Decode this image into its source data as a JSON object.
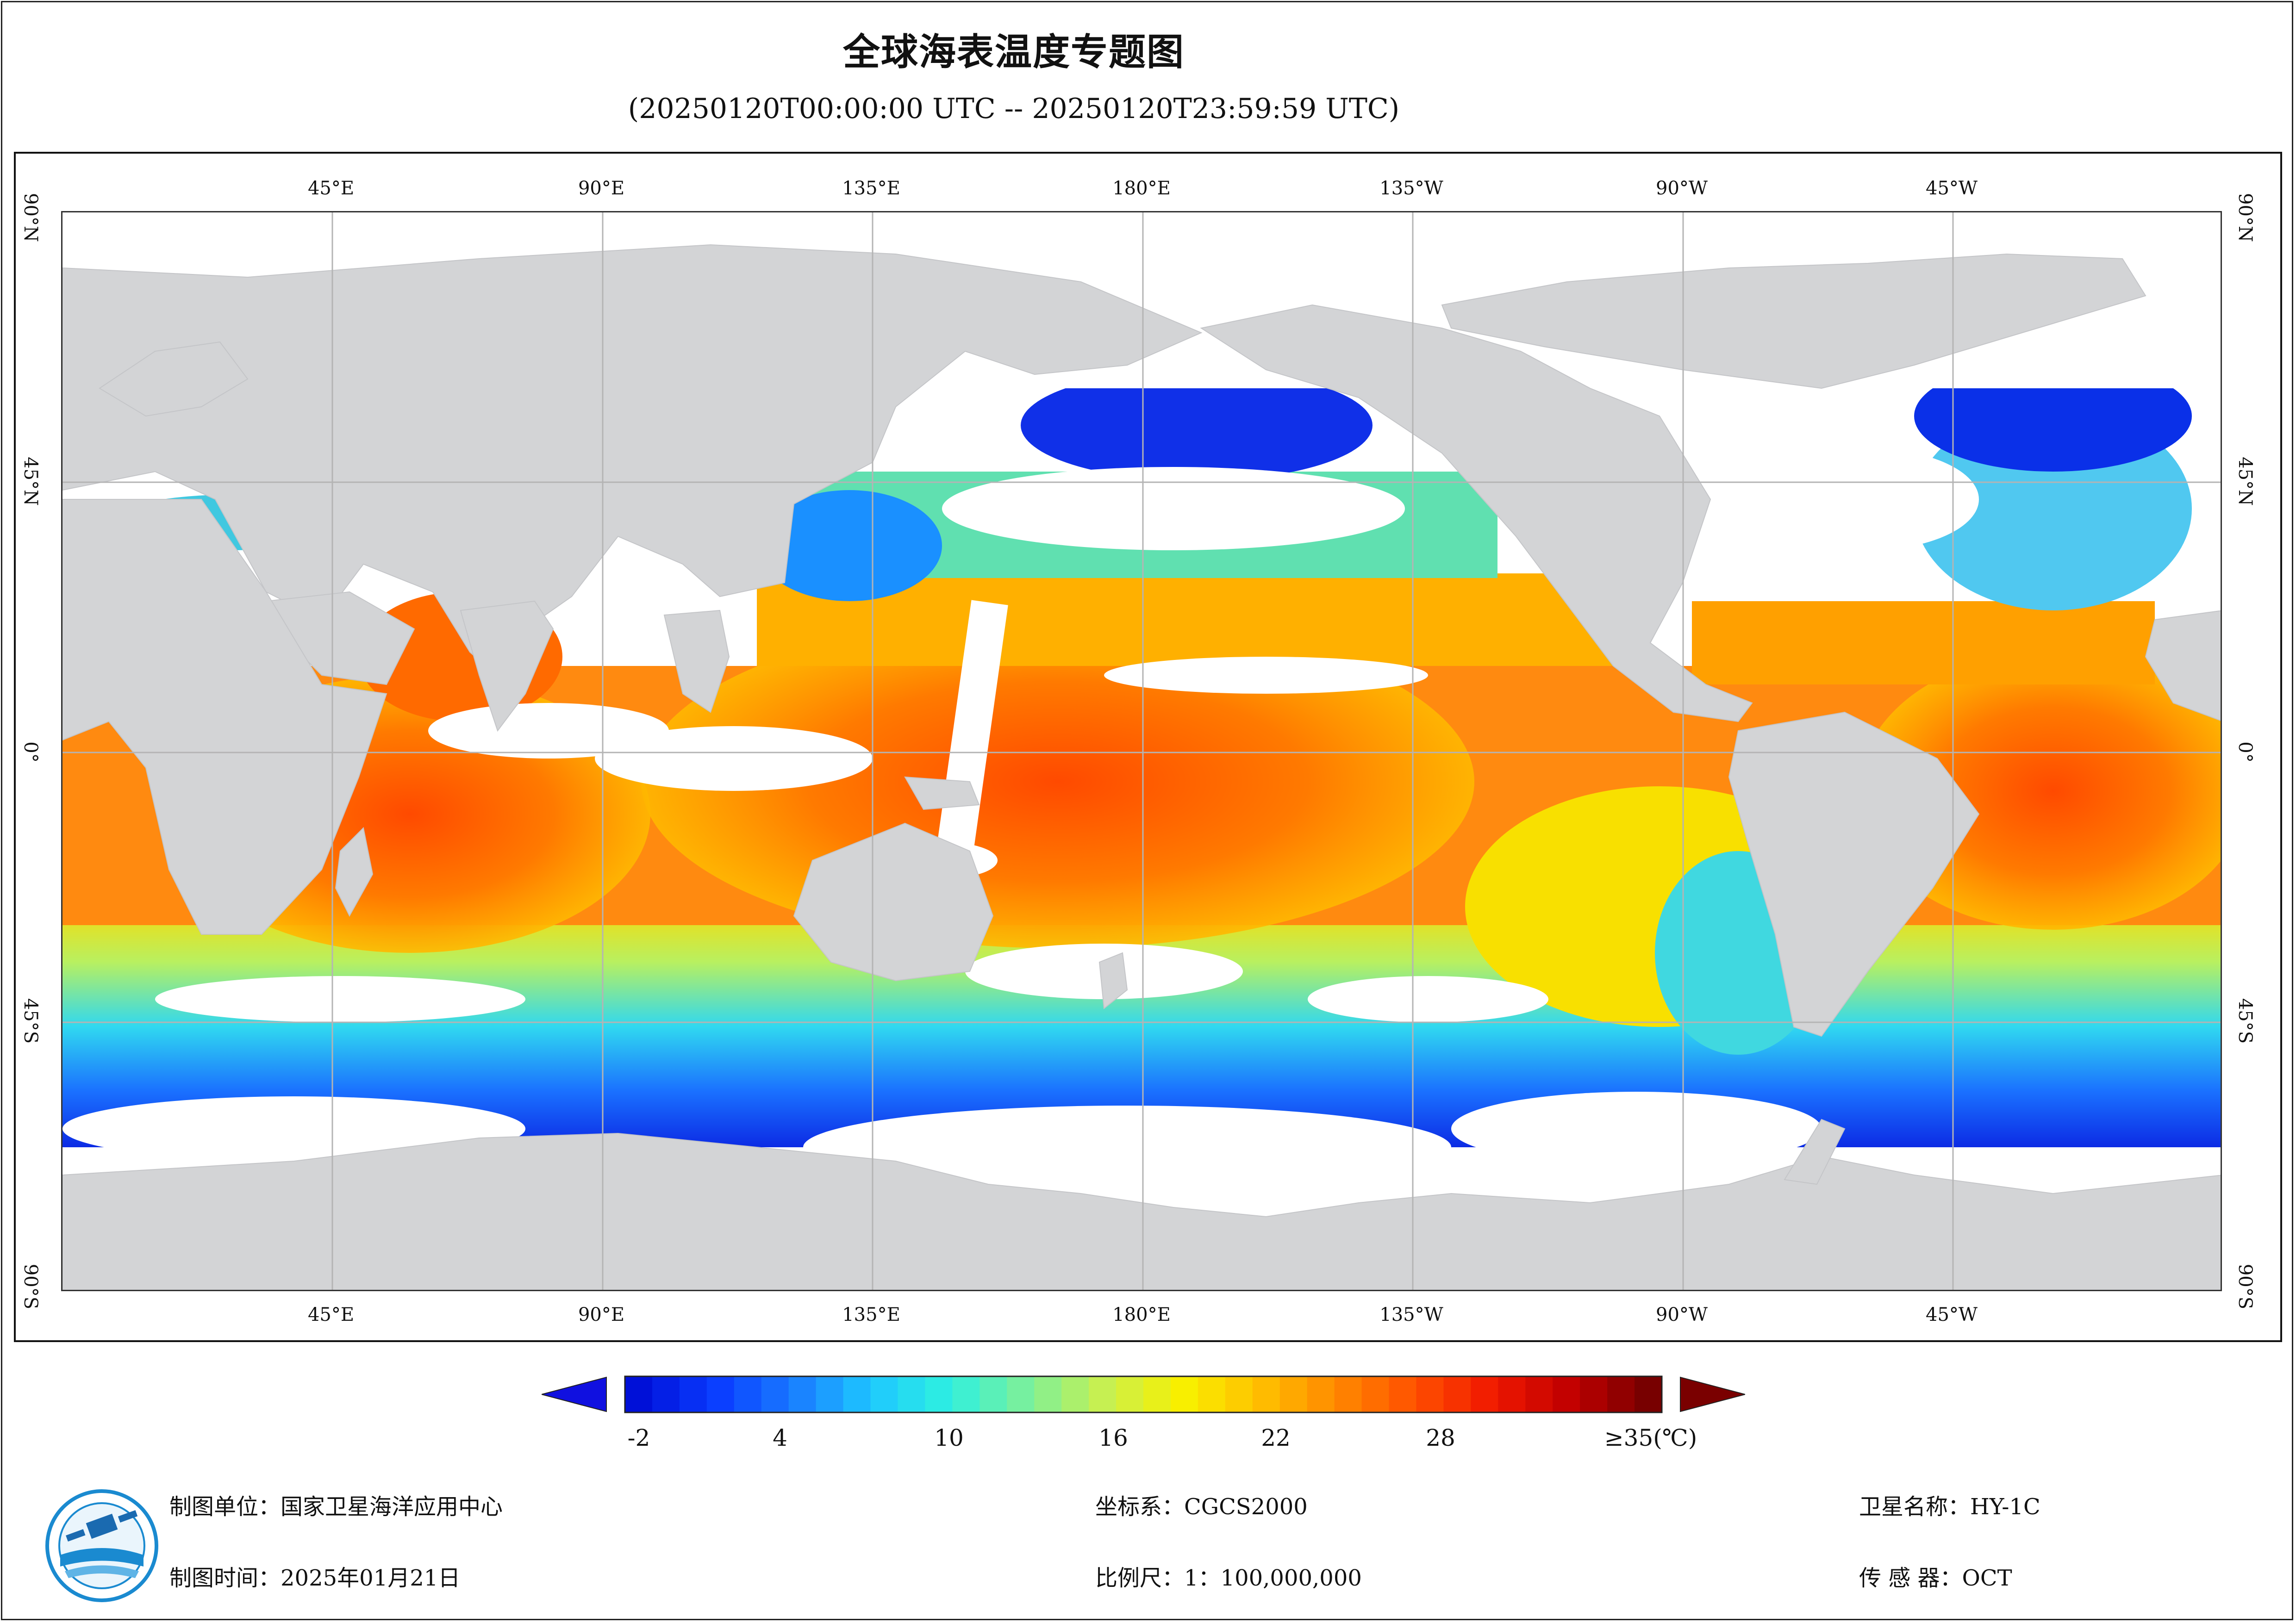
{
  "title": "全球海表温度专题图",
  "subtitle": "(20250120T00:00:00 UTC -- 20250120T23:59:59 UTC)",
  "axes": {
    "top_longitudes": [
      "45°E",
      "90°E",
      "135°E",
      "180°E",
      "135°W",
      "90°W",
      "45°W"
    ],
    "bottom_longitudes": [
      "45°E",
      "90°E",
      "135°E",
      "180°E",
      "135°W",
      "90°W",
      "45°W"
    ],
    "left_latitudes": [
      "90°N",
      "45°N",
      "0°",
      "45°S",
      "90°S"
    ],
    "right_latitudes": [
      "90°N",
      "45°N",
      "0°",
      "45°S",
      "90°S"
    ]
  },
  "colorbar": {
    "labels": [
      "-2",
      "4",
      "10",
      "16",
      "22",
      "28",
      "≥35(℃)"
    ],
    "values": [
      -2,
      4,
      10,
      16,
      22,
      28,
      35
    ],
    "colors": [
      "#0010d8",
      "#0a3cff",
      "#1a7cff",
      "#1ec8ff",
      "#2ef0e0",
      "#7cf09a",
      "#c8f050",
      "#f8f000",
      "#ffc000",
      "#ff8800",
      "#ff5000",
      "#f01800",
      "#c00000",
      "#780000"
    ],
    "under_color": "#1010e0",
    "over_color": "#7a0000"
  },
  "legend_colors": {
    "land": "#d3d4d6",
    "nodata": "#ffffff",
    "grid": "#b4b4b4"
  },
  "footer": {
    "unit": "制图单位：国家卫星海洋应用中心",
    "time": "制图时间：2025年01月21日",
    "crs": "坐标系：CGCS2000",
    "scale": "比例尺：1：100,000,000",
    "satellite": "卫星名称：HY-1C",
    "sensor": "传 感 器：OCT"
  },
  "logo": {
    "icon": "nsoas-logo-icon"
  }
}
